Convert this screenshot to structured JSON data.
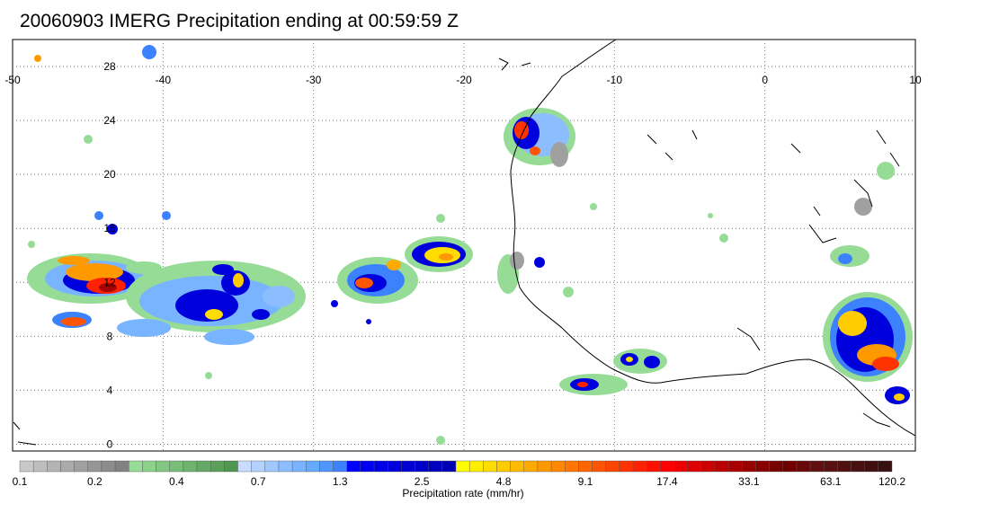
{
  "title": "20060903 IMERG Precipitation ending at 00:59:59 Z",
  "map": {
    "lon_ticks": [
      "-50",
      "-40",
      "-30",
      "-20",
      "-10",
      "0",
      "10"
    ],
    "lat_ticks": [
      "28",
      "24",
      "20",
      "16",
      "12",
      "8",
      "4",
      "0"
    ],
    "extent": {
      "lon_min": -50,
      "lon_max": 10,
      "lat_min": -0.5,
      "lat_max": 30
    }
  },
  "colorbar": {
    "label": "Precipitation rate (mm/hr)",
    "tick_labels": [
      "0.1",
      "0.2",
      "0.4",
      "0.7",
      "1.3",
      "2.5",
      "4.8",
      "9.1",
      "17.4",
      "33.1",
      "63.1",
      "120.2"
    ],
    "colors": [
      "#c8c8c8",
      "#bebebe",
      "#b4b4b4",
      "#aaaaaa",
      "#a0a0a0",
      "#969696",
      "#8c8c8c",
      "#828282",
      "#96dc96",
      "#8cd28c",
      "#82c882",
      "#78be78",
      "#6eb46e",
      "#64aa64",
      "#5aa05a",
      "#509650",
      "#c8dcff",
      "#b4d2ff",
      "#a0c8ff",
      "#8cbeff",
      "#78b4ff",
      "#64aaff",
      "#5096ff",
      "#3c82ff",
      "#0000ff",
      "#0000f0",
      "#0000e6",
      "#0000dc",
      "#0000d2",
      "#0000c8",
      "#0000be",
      "#0000b4",
      "#ffff00",
      "#ffee00",
      "#ffdd00",
      "#ffcc00",
      "#ffbb00",
      "#ffaa00",
      "#ff9900",
      "#ff8800",
      "#ff7700",
      "#ff6600",
      "#ff5500",
      "#ff4400",
      "#ff3300",
      "#ff2200",
      "#ff1100",
      "#ff0000",
      "#ee0000",
      "#dd0000",
      "#cc0000",
      "#bb0000",
      "#aa0000",
      "#990000",
      "#880000",
      "#770000",
      "#700000",
      "#680808",
      "#601010",
      "#581010",
      "#501010",
      "#481010",
      "#401010",
      "#381010"
    ]
  }
}
